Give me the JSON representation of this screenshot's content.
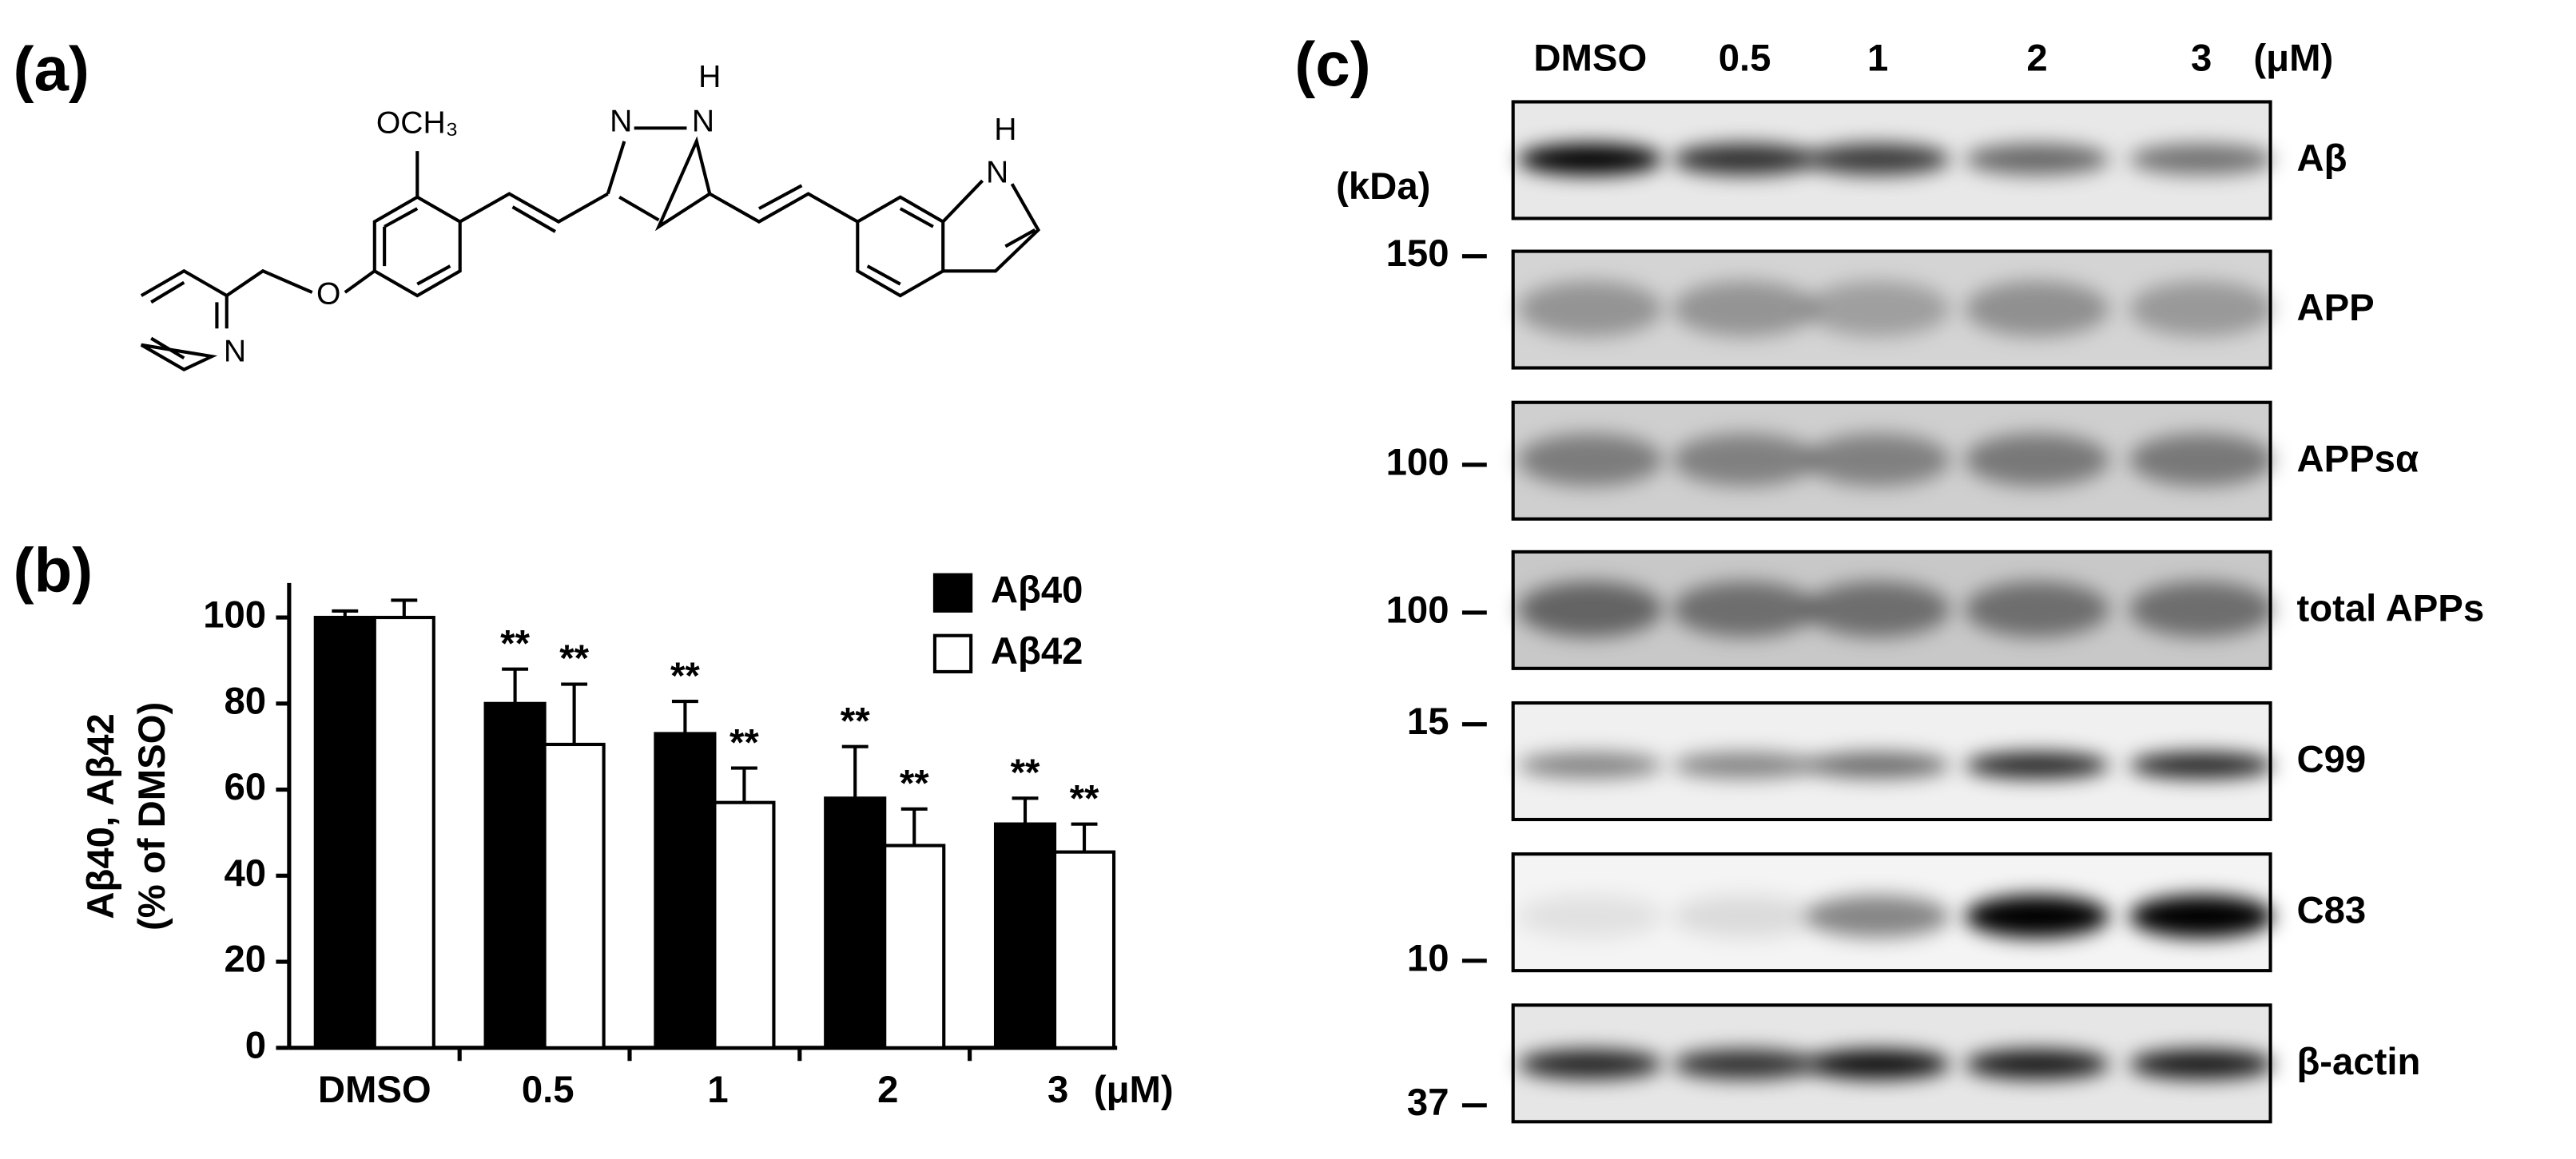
{
  "panel_labels": [
    "(a)",
    "(b)",
    "(c)"
  ],
  "structure": {
    "labels": [
      "OCH₃",
      "N",
      "H",
      "N",
      "N",
      "O",
      "N",
      "H"
    ]
  },
  "chart_data": {
    "type": "bar",
    "y_label": [
      "Aβ40, Aβ42",
      "(% of DMSO)"
    ],
    "x_unit": "(μM)",
    "categories": [
      "DMSO",
      "0.5",
      "1",
      "2",
      "3"
    ],
    "series": [
      {
        "name": "Aβ40",
        "color": "#000000",
        "values": [
          100,
          80,
          73,
          58,
          52
        ],
        "errors": [
          1.5,
          8,
          7.5,
          12,
          6
        ],
        "annotations": [
          null,
          "**",
          "**",
          "**",
          "**"
        ]
      },
      {
        "name": "Aβ42",
        "color": "#ffffff",
        "values": [
          100,
          70.5,
          57,
          47,
          45.5
        ],
        "errors": [
          4,
          14,
          8,
          8.5,
          6.5
        ],
        "annotations": [
          null,
          "**",
          "**",
          "**",
          "**"
        ]
      }
    ],
    "ylim": [
      0,
      108
    ],
    "yticks": [
      0,
      20,
      40,
      60,
      80,
      100
    ],
    "legend": "upper right"
  },
  "blot": {
    "lanes": [
      "DMSO",
      "0.5",
      "1",
      "2",
      "3"
    ],
    "unit": "(μM)",
    "mw_unit": "(kDa)",
    "rows": [
      "Aβ",
      "APP",
      "APPsα",
      "total APPs",
      "C99",
      "C83",
      "β-actin"
    ],
    "markers": [
      150,
      100,
      100,
      15,
      10,
      37
    ]
  }
}
